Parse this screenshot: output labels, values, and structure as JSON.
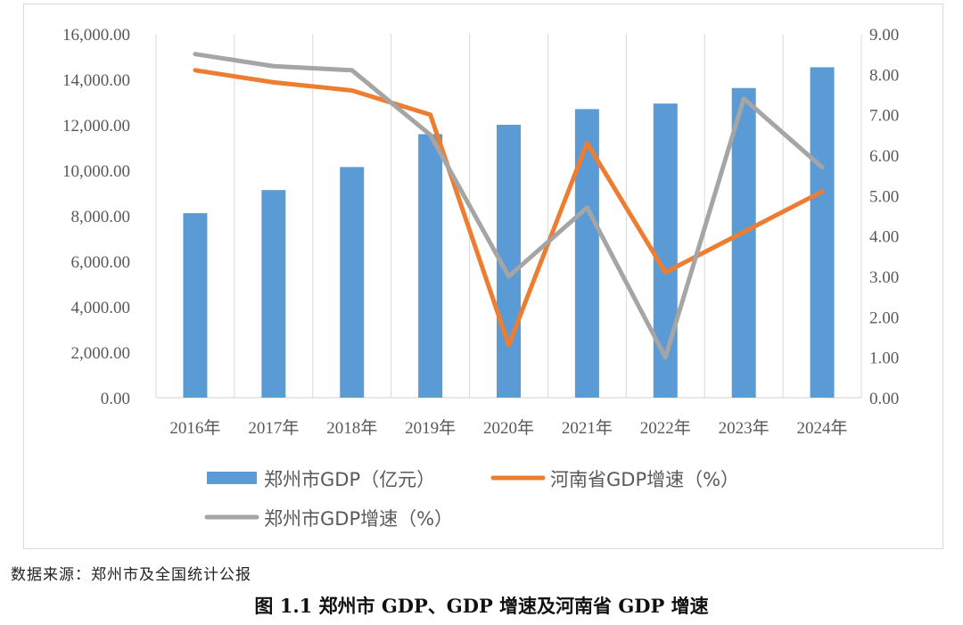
{
  "chart_data": {
    "type": "bar+line",
    "categories": [
      "2016年",
      "2017年",
      "2018年",
      "2019年",
      "2020年",
      "2021年",
      "2022年",
      "2023年",
      "2024年"
    ],
    "bar_series": {
      "name": "郑州市GDP（亿元）",
      "color": "#5b9bd5",
      "values": [
        8114.0,
        9130.2,
        10143.3,
        11589.7,
        12003.0,
        12691.0,
        12934.7,
        13617.8,
        14532.1
      ]
    },
    "line_series": [
      {
        "name": "河南省GDP增速（%）",
        "color": "#ed7d31",
        "values": [
          8.1,
          7.8,
          7.6,
          7.0,
          1.3,
          6.3,
          3.1,
          4.1,
          5.1
        ]
      },
      {
        "name": "郑州市GDP增速（%）",
        "color": "#a5a5a5",
        "values": [
          8.5,
          8.2,
          8.1,
          6.5,
          3.0,
          4.7,
          1.0,
          7.4,
          5.7
        ]
      }
    ],
    "y_left": {
      "min": 0,
      "max": 16000,
      "step": 2000,
      "tick_labels": [
        "0.00",
        "2,000.00",
        "4,000.00",
        "6,000.00",
        "8,000.00",
        "10,000.00",
        "12,000.00",
        "14,000.00",
        "16,000.00"
      ]
    },
    "y_right": {
      "min": 0,
      "max": 9,
      "step": 1,
      "tick_labels": [
        "0.00",
        "1.00",
        "2.00",
        "3.00",
        "4.00",
        "5.00",
        "6.00",
        "7.00",
        "8.00",
        "9.00"
      ]
    },
    "grid": "vertical",
    "legend_position": "bottom"
  },
  "source_note": "数据来源：郑州市及全国统计公报",
  "caption": "图 1.1    郑州市 GDP、GDP 增速及河南省 GDP 增速"
}
